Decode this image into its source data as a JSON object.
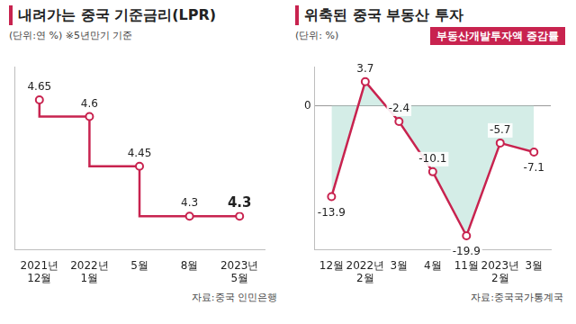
{
  "chart_data": [
    {
      "type": "line",
      "title": "내려가는 중국 기준금리(LPR)",
      "subtitle": "(단위:연 %)",
      "annotations": [
        "※5년만기 기준"
      ],
      "source": "자료:중국 인민은행",
      "categories": [
        "2021년 12월",
        "2022년 1월",
        "5월",
        "8월",
        "2023년 5월"
      ],
      "series": [
        {
          "color": "#c8234f",
          "values": [
            4.65,
            4.6,
            4.45,
            4.3,
            4.3
          ]
        }
      ],
      "line_style": "step",
      "marker": "circle",
      "ylim": [
        4.2,
        4.75
      ],
      "tick_labels": "x",
      "grid": false,
      "data_labels": true
    },
    {
      "type": "area",
      "title": "위축된 중국 부동산 투자",
      "subtitle": "(단위: %)",
      "source": "자료:중국국가통계국",
      "categories": [
        "12월",
        "2022년 2월",
        "3월",
        "4월",
        "11월",
        "2023년 2월",
        "3월"
      ],
      "series": [
        {
          "name": "부동산개발투자액 증감률",
          "color": "#c8234f",
          "values": [
            -13.9,
            3.7,
            -2.4,
            -10.1,
            -19.9,
            -5.7,
            -7.1
          ]
        }
      ],
      "line_style": "solid",
      "marker": "circle",
      "ylim": [
        -22,
        6
      ],
      "yticks": [
        0
      ],
      "legend": "top-right",
      "grid": true,
      "data_labels": true
    }
  ]
}
